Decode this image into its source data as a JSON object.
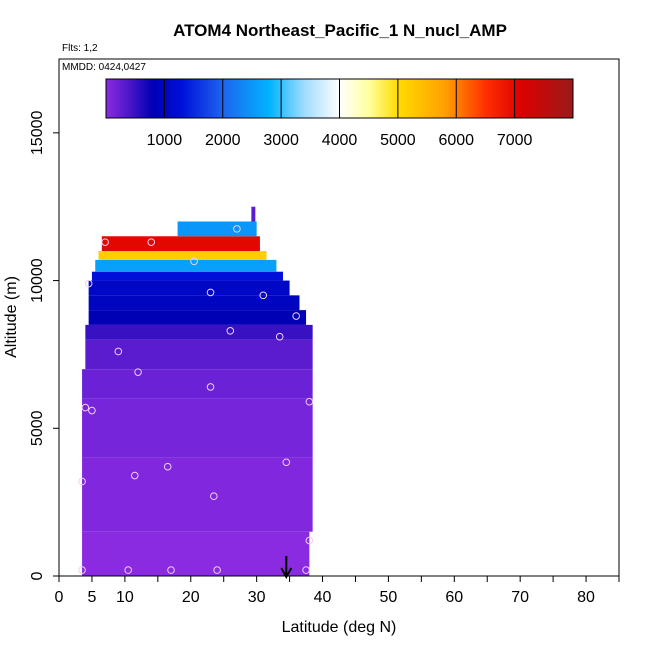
{
  "chart_data": {
    "type": "heatmap",
    "title": "ATOM4 Northeast_Pacific_1 N_nucl_AMP",
    "flights_label": "Flts: 1,2",
    "mmdd_label": "MMDD: 0424,0427",
    "xlabel": "Latitude (deg N)",
    "ylabel": "Altitude (m)",
    "xlim": [
      0,
      85
    ],
    "ylim": [
      0,
      17500
    ],
    "x_ticks": [
      0,
      5,
      10,
      20,
      30,
      40,
      50,
      60,
      70,
      80
    ],
    "x_minor_ticks": [
      15,
      25,
      35,
      45,
      55,
      65,
      75,
      85
    ],
    "y_ticks": [
      0,
      5000,
      10000,
      15000
    ],
    "colorbar": {
      "range": [
        0,
        8000
      ],
      "ticks": [
        1000,
        2000,
        3000,
        4000,
        5000,
        6000,
        7000
      ],
      "stops": [
        {
          "v": 0,
          "c": "#8a2be2"
        },
        {
          "v": 400,
          "c": "#4b16c8"
        },
        {
          "v": 800,
          "c": "#0000b4"
        },
        {
          "v": 1300,
          "c": "#0010d8"
        },
        {
          "v": 2000,
          "c": "#1e64f0"
        },
        {
          "v": 2800,
          "c": "#00b4ff"
        },
        {
          "v": 3400,
          "c": "#a0dcff"
        },
        {
          "v": 4000,
          "c": "#ffffff"
        },
        {
          "v": 4500,
          "c": "#ffffa0"
        },
        {
          "v": 5000,
          "c": "#ffdc00"
        },
        {
          "v": 5800,
          "c": "#ffa000"
        },
        {
          "v": 6500,
          "c": "#ff3000"
        },
        {
          "v": 7100,
          "c": "#dc0000"
        },
        {
          "v": 8000,
          "c": "#9b1a1a"
        }
      ]
    },
    "curtain": [
      {
        "y0": 0,
        "y1": 1500,
        "x0": 3.5,
        "x1": 38,
        "v": 0
      },
      {
        "y0": 1500,
        "y1": 4000,
        "x0": 3.5,
        "x1": 38.5,
        "v": 60
      },
      {
        "y0": 4000,
        "y1": 6000,
        "x0": 3.5,
        "x1": 38.5,
        "v": 120
      },
      {
        "y0": 6000,
        "y1": 7000,
        "x0": 3.5,
        "x1": 38.5,
        "v": 200
      },
      {
        "y0": 7000,
        "y1": 8000,
        "x0": 4,
        "x1": 38.5,
        "v": 300
      },
      {
        "y0": 8000,
        "y1": 8500,
        "x0": 4,
        "x1": 38.5,
        "v": 500
      },
      {
        "y0": 8500,
        "y1": 9000,
        "x0": 4.5,
        "x1": 37.5,
        "v": 800
      },
      {
        "y0": 9000,
        "y1": 9500,
        "x0": 4.5,
        "x1": 36.5,
        "v": 950
      },
      {
        "y0": 9500,
        "y1": 10000,
        "x0": 4.5,
        "x1": 35,
        "v": 1050
      },
      {
        "y0": 10000,
        "y1": 10300,
        "x0": 5,
        "x1": 34,
        "v": 1300
      },
      {
        "y0": 10300,
        "y1": 10700,
        "x0": 5.5,
        "x1": 33,
        "v": 2600
      },
      {
        "y0": 10700,
        "y1": 11000,
        "x0": 6,
        "x1": 31.5,
        "v": 5200
      },
      {
        "y0": 11000,
        "y1": 11500,
        "x0": 6.5,
        "x1": 30.5,
        "v": 7000
      },
      {
        "y0": 11500,
        "y1": 12000,
        "x0": 18,
        "x1": 30,
        "v": 2500
      },
      {
        "y0": 12000,
        "y1": 12500,
        "x0": 29.2,
        "x1": 29.8,
        "v": 300
      }
    ],
    "sample_points": [
      {
        "x": 3.5,
        "y": 200
      },
      {
        "x": 10.5,
        "y": 200
      },
      {
        "x": 17,
        "y": 200
      },
      {
        "x": 24,
        "y": 200
      },
      {
        "x": 37.5,
        "y": 200
      },
      {
        "x": 38,
        "y": 1200
      },
      {
        "x": 3.5,
        "y": 3200
      },
      {
        "x": 11.5,
        "y": 3400
      },
      {
        "x": 16.5,
        "y": 3700
      },
      {
        "x": 23.5,
        "y": 2700
      },
      {
        "x": 34.5,
        "y": 3850
      },
      {
        "x": 4,
        "y": 5700
      },
      {
        "x": 5,
        "y": 5600
      },
      {
        "x": 38,
        "y": 5900
      },
      {
        "x": 23,
        "y": 6400
      },
      {
        "x": 12,
        "y": 6900
      },
      {
        "x": 9,
        "y": 7600
      },
      {
        "x": 26,
        "y": 8300
      },
      {
        "x": 33.5,
        "y": 8100
      },
      {
        "x": 36,
        "y": 8800
      },
      {
        "x": 4.5,
        "y": 9900
      },
      {
        "x": 23,
        "y": 9600
      },
      {
        "x": 31,
        "y": 9500
      },
      {
        "x": 20.5,
        "y": 10650
      },
      {
        "x": 7,
        "y": 11300
      },
      {
        "x": 14,
        "y": 11300
      },
      {
        "x": 27,
        "y": 11750
      }
    ],
    "flight_arrow_x": 34.5
  }
}
